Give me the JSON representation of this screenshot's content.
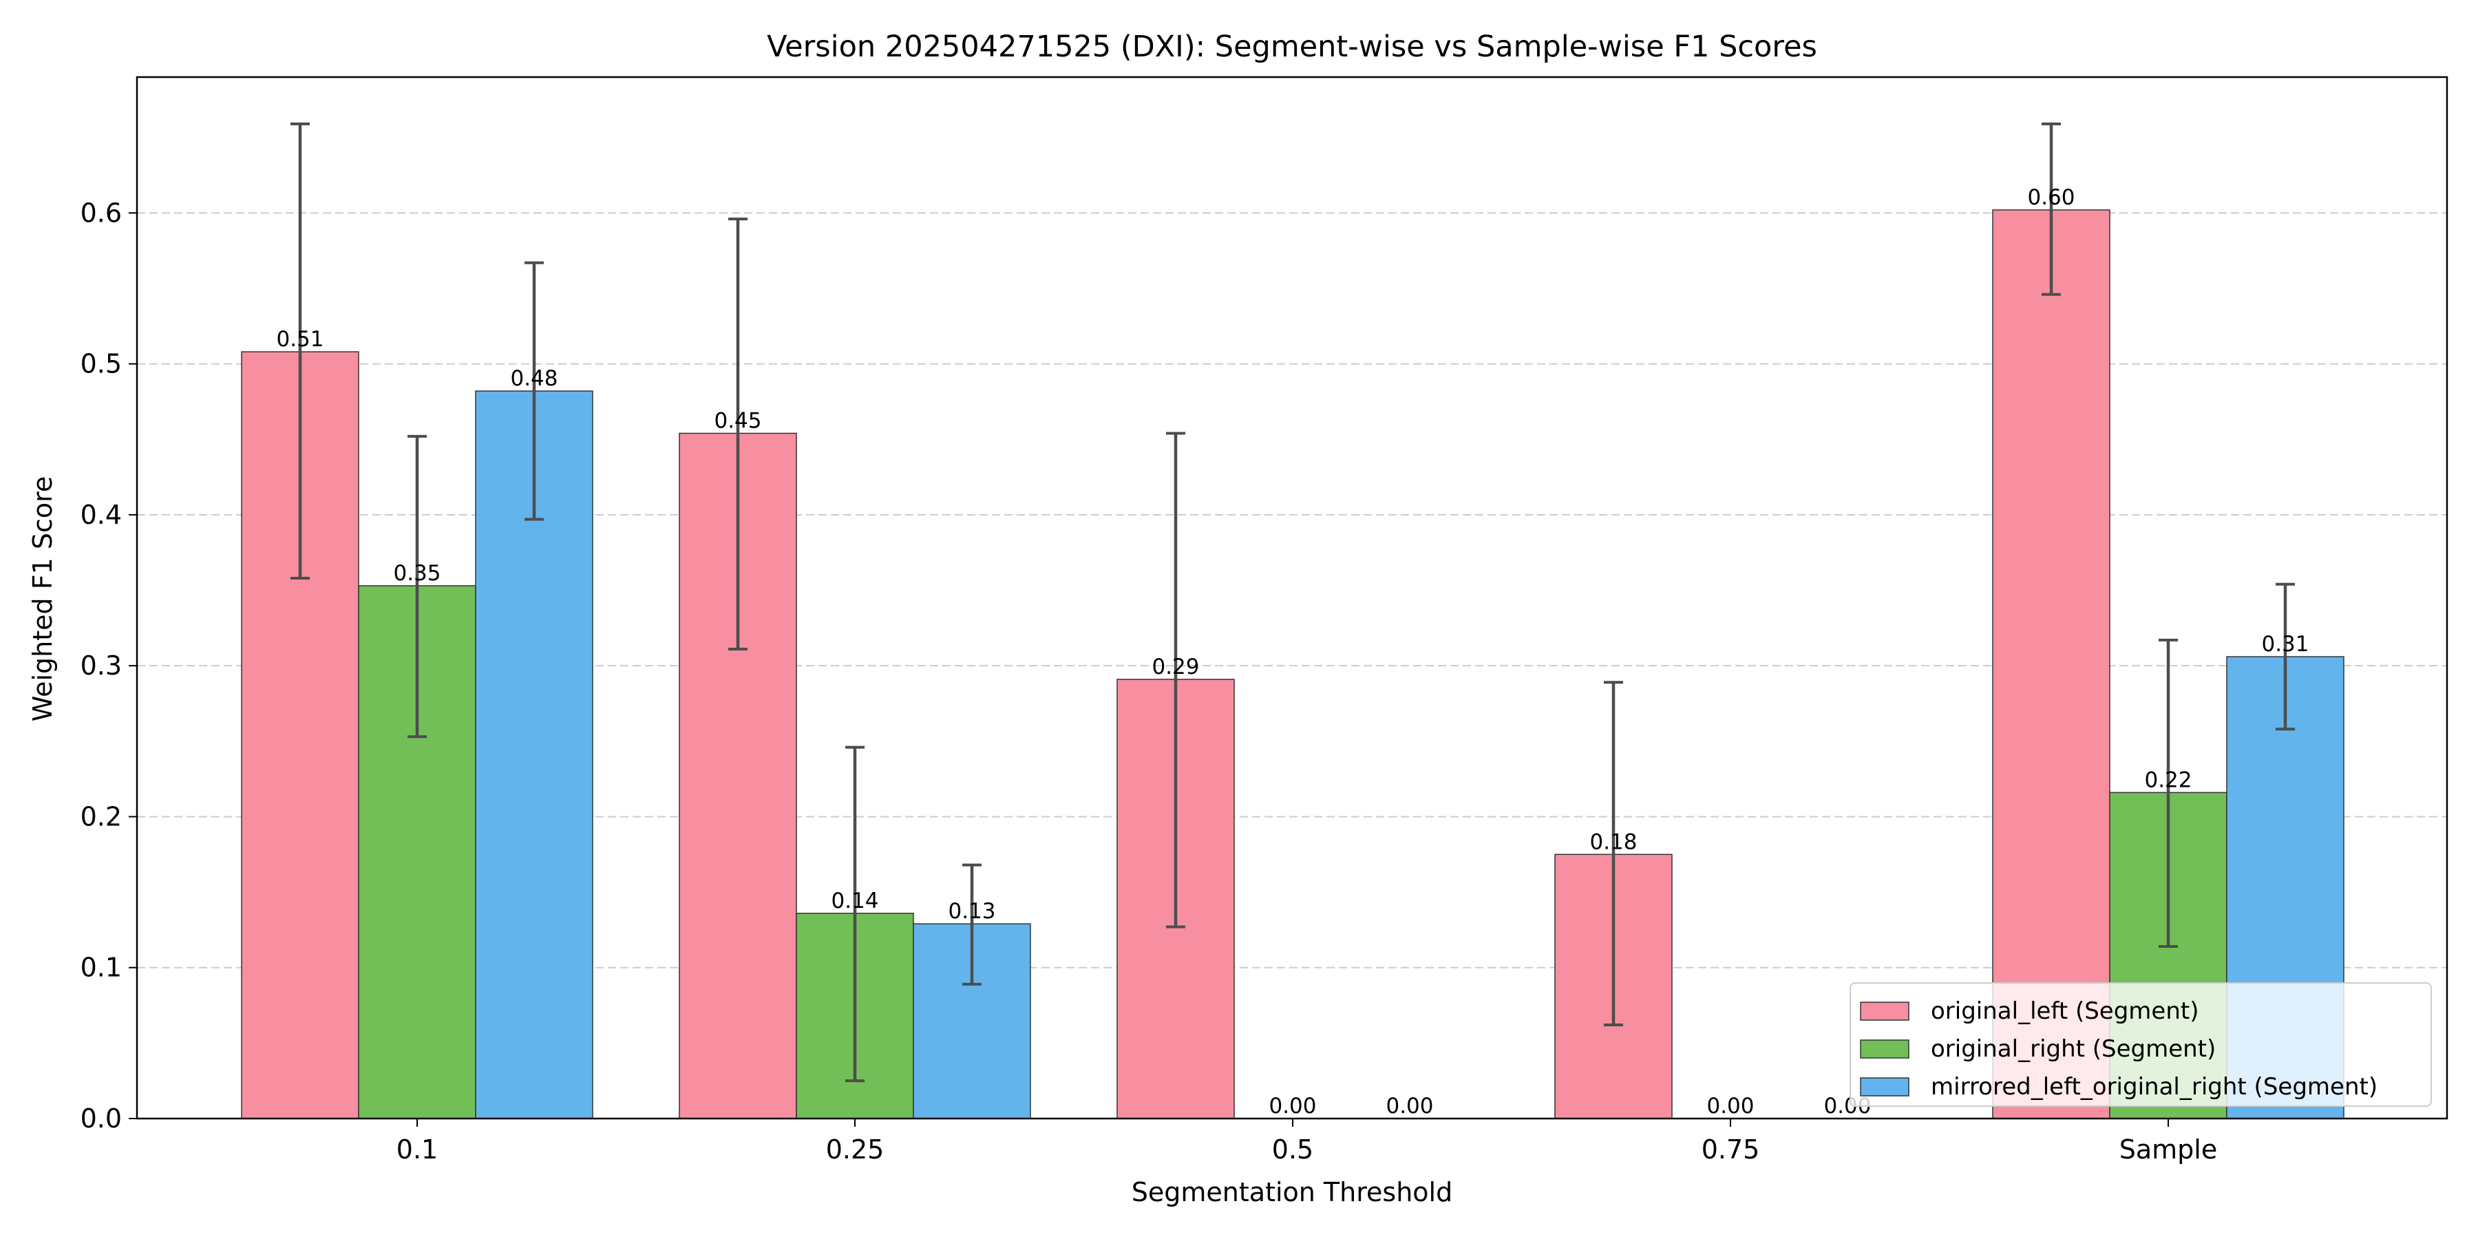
{
  "chart_data": {
    "type": "bar",
    "title": "Version 202504271525 (DXI): Segment-wise vs Sample-wise F1 Scores",
    "xlabel": "Segmentation Threshold",
    "ylabel": "Weighted F1 Score",
    "categories": [
      "0.1",
      "0.25",
      "0.5",
      "0.75",
      "Sample"
    ],
    "ylim": [
      0,
      0.69
    ],
    "yticks": [
      0.0,
      0.1,
      0.2,
      0.3,
      0.4,
      0.5,
      0.6
    ],
    "ytick_labels": [
      "0.0",
      "0.1",
      "0.2",
      "0.3",
      "0.4",
      "0.5",
      "0.6"
    ],
    "grid": "y-dashed",
    "legend_position": "bottom-right",
    "series": [
      {
        "name": "original_left (Segment)",
        "color": "#f78fa1",
        "values": [
          0.508,
          0.454,
          0.291,
          0.175,
          0.602
        ],
        "value_labels": [
          "0.51",
          "0.45",
          "0.29",
          "0.18",
          "0.60"
        ],
        "err_low": [
          0.358,
          0.311,
          0.127,
          0.062,
          0.546
        ],
        "err_high": [
          0.659,
          0.596,
          0.454,
          0.289,
          0.659
        ]
      },
      {
        "name": "original_right (Segment)",
        "color": "#72bf58",
        "values": [
          0.353,
          0.136,
          0.0,
          0.0,
          0.216
        ],
        "value_labels": [
          "0.35",
          "0.14",
          "0.00",
          "0.00",
          "0.22"
        ],
        "err_low": [
          0.253,
          0.025,
          null,
          null,
          0.114
        ],
        "err_high": [
          0.452,
          0.246,
          null,
          null,
          0.317
        ]
      },
      {
        "name": "mirrored_left_original_right (Segment)",
        "color": "#63b4ed",
        "values": [
          0.482,
          0.129,
          0.0,
          0.0,
          0.306
        ],
        "value_labels": [
          "0.48",
          "0.13",
          "0.00",
          "0.00",
          "0.31"
        ],
        "err_low": [
          0.397,
          0.089,
          null,
          null,
          0.258
        ],
        "err_high": [
          0.567,
          0.168,
          null,
          null,
          0.354
        ]
      }
    ]
  }
}
